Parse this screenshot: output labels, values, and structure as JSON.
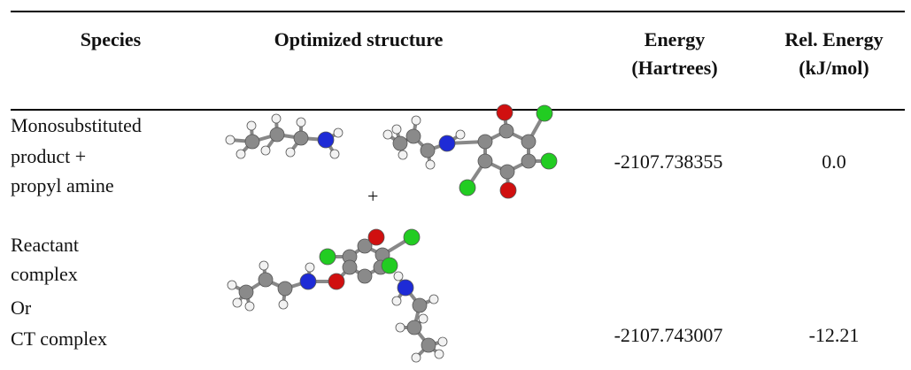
{
  "table": {
    "header": [
      "Species",
      "Optimized structure",
      [
        "Energy",
        "(Hartrees)"
      ],
      [
        "Rel. Energy",
        "(kJ/mol)"
      ]
    ],
    "rows": [
      {
        "species": [
          "Monosubstituted",
          "product +",
          "propyl amine"
        ],
        "structure_joiner": "+",
        "energy": "-2107.738355",
        "rel_energy": "0.0"
      },
      {
        "species": [
          "Reactant",
          "complex",
          "Or",
          "CT complex"
        ],
        "energy": "-2107.743007",
        "rel_energy": "-12.21"
      }
    ]
  }
}
